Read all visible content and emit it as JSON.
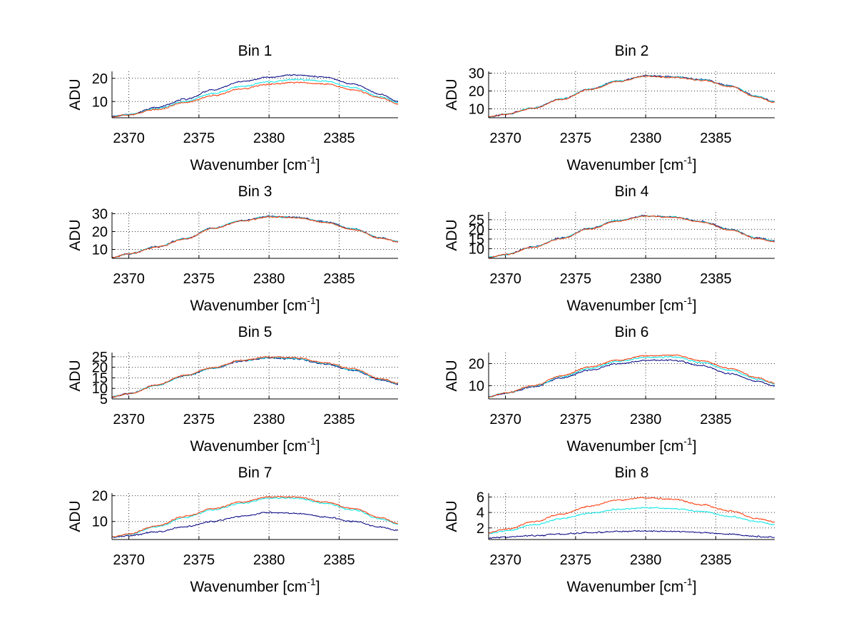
{
  "figure": {
    "background": "#ffffff",
    "series_colors": [
      "#000080",
      "#00e5e5",
      "#ff3300"
    ]
  },
  "chart_data": [
    {
      "type": "line",
      "title": "Bin 1",
      "xlabel": "Wavenumber [cm",
      "xlabel_sup": "-1",
      "xlabel_end": "]",
      "ylabel": "ADU",
      "xlim": [
        2368.8,
        2389.2
      ],
      "ylim": [
        3,
        23
      ],
      "xticks": [
        2370,
        2375,
        2380,
        2385
      ],
      "yticks": [
        10,
        20
      ],
      "grid": true,
      "x": [
        2368.8,
        2370,
        2372,
        2374,
        2376,
        2378,
        2380,
        2382,
        2384,
        2386,
        2388,
        2389.2
      ],
      "series": [
        {
          "values": [
            3.5,
            4.5,
            7.5,
            11,
            15,
            18.5,
            20.5,
            21.5,
            20.5,
            17.5,
            13,
            10
          ]
        },
        {
          "values": [
            3.5,
            4.4,
            7,
            10,
            13.5,
            16.5,
            18.5,
            19.5,
            18.8,
            16,
            12,
            9.5
          ]
        },
        {
          "values": [
            3.5,
            4.3,
            6.5,
            9.5,
            12.5,
            15.5,
            17.5,
            18.2,
            17.5,
            15,
            11.5,
            9
          ]
        }
      ]
    },
    {
      "type": "line",
      "title": "Bin 2",
      "xlabel": "Wavenumber [cm",
      "xlabel_sup": "-1",
      "xlabel_end": "]",
      "ylabel": "ADU",
      "xlim": [
        2368.8,
        2389.2
      ],
      "ylim": [
        5,
        31
      ],
      "xticks": [
        2370,
        2375,
        2380,
        2385
      ],
      "yticks": [
        10,
        20,
        30
      ],
      "grid": true,
      "x": [
        2368.8,
        2370,
        2372,
        2374,
        2376,
        2378,
        2380,
        2382,
        2384,
        2386,
        2388,
        2389.2
      ],
      "series": [
        {
          "values": [
            5.5,
            7,
            10.5,
            15.5,
            21,
            25.5,
            28.5,
            28,
            26.5,
            23,
            17,
            14
          ]
        },
        {
          "values": [
            5.5,
            7,
            10.5,
            15.5,
            21,
            25.5,
            28.3,
            27.8,
            26.3,
            22.8,
            16.8,
            13.8
          ]
        },
        {
          "values": [
            5.5,
            7,
            10.3,
            15.3,
            20.8,
            25.3,
            28.2,
            27.6,
            26,
            22.5,
            16.5,
            13.5
          ]
        }
      ]
    },
    {
      "type": "line",
      "title": "Bin 3",
      "xlabel": "Wavenumber [cm",
      "xlabel_sup": "-1",
      "xlabel_end": "]",
      "ylabel": "ADU",
      "xlim": [
        2368.8,
        2389.2
      ],
      "ylim": [
        5,
        31
      ],
      "xticks": [
        2370,
        2375,
        2380,
        2385
      ],
      "yticks": [
        10,
        20,
        30
      ],
      "grid": true,
      "x": [
        2368.8,
        2370,
        2372,
        2374,
        2376,
        2378,
        2380,
        2382,
        2384,
        2386,
        2388,
        2389.2
      ],
      "series": [
        {
          "values": [
            5.5,
            7.5,
            11.5,
            16,
            22,
            26,
            28.5,
            28,
            25.5,
            21.5,
            16.5,
            14.5
          ]
        },
        {
          "values": [
            5.5,
            7.5,
            11.5,
            16,
            22,
            26,
            28.4,
            27.9,
            25.4,
            21.4,
            16.4,
            14.4
          ]
        },
        {
          "values": [
            5.5,
            7.5,
            11.3,
            15.8,
            21.8,
            25.8,
            28.2,
            27.7,
            25.2,
            21.2,
            16.2,
            14.2
          ]
        }
      ]
    },
    {
      "type": "line",
      "title": "Bin 4",
      "xlabel": "Wavenumber [cm",
      "xlabel_sup": "-1",
      "xlabel_end": "]",
      "ylabel": "ADU",
      "xlim": [
        2368.8,
        2389.2
      ],
      "ylim": [
        5,
        29
      ],
      "xticks": [
        2370,
        2375,
        2380,
        2385
      ],
      "yticks": [
        10,
        15,
        20,
        25
      ],
      "grid": true,
      "x": [
        2368.8,
        2370,
        2372,
        2374,
        2376,
        2378,
        2380,
        2382,
        2384,
        2386,
        2388,
        2389.2
      ],
      "series": [
        {
          "values": [
            5.5,
            7,
            11,
            15.5,
            20.5,
            24.5,
            27,
            26.5,
            24,
            20,
            15.5,
            14
          ]
        },
        {
          "values": [
            5.5,
            7,
            11,
            15.5,
            20.5,
            24.5,
            26.9,
            26.4,
            23.9,
            19.9,
            15.4,
            13.9
          ]
        },
        {
          "values": [
            5.5,
            7,
            10.8,
            15.3,
            20.3,
            24.3,
            26.8,
            26.2,
            23.7,
            19.7,
            15.2,
            13.7
          ]
        }
      ]
    },
    {
      "type": "line",
      "title": "Bin 5",
      "xlabel": "Wavenumber [cm",
      "xlabel_sup": "-1",
      "xlabel_end": "]",
      "ylabel": "ADU",
      "xlim": [
        2368.8,
        2389.2
      ],
      "ylim": [
        5,
        27
      ],
      "xticks": [
        2370,
        2375,
        2380,
        2385
      ],
      "yticks": [
        5,
        10,
        15,
        20,
        25
      ],
      "grid": true,
      "x": [
        2368.8,
        2370,
        2372,
        2374,
        2376,
        2378,
        2380,
        2382,
        2384,
        2386,
        2388,
        2389.2
      ],
      "series": [
        {
          "values": [
            6,
            7.5,
            11.5,
            16,
            19.5,
            23,
            24.5,
            24,
            21.5,
            18.5,
            14,
            12
          ]
        },
        {
          "values": [
            6,
            7.5,
            11.5,
            16,
            19.6,
            23.1,
            24.6,
            24.2,
            21.8,
            18.8,
            14.3,
            12.3
          ]
        },
        {
          "values": [
            6,
            7.5,
            11.6,
            16.2,
            19.8,
            23.3,
            24.9,
            24.5,
            22.1,
            19.2,
            14.6,
            12.6
          ]
        }
      ]
    },
    {
      "type": "line",
      "title": "Bin 6",
      "xlabel": "Wavenumber [cm",
      "xlabel_sup": "-1",
      "xlabel_end": "]",
      "ylabel": "ADU",
      "xlim": [
        2368.8,
        2389.2
      ],
      "ylim": [
        4,
        25
      ],
      "xticks": [
        2370,
        2375,
        2380,
        2385
      ],
      "yticks": [
        10,
        20
      ],
      "grid": true,
      "x": [
        2368.8,
        2370,
        2372,
        2374,
        2376,
        2378,
        2380,
        2382,
        2384,
        2386,
        2388,
        2389.2
      ],
      "series": [
        {
          "values": [
            5,
            6.5,
            9.5,
            13.5,
            17,
            20,
            21.5,
            21.5,
            19,
            15.5,
            12,
            10
          ]
        },
        {
          "values": [
            5,
            6.6,
            9.8,
            14,
            17.8,
            21,
            22.8,
            23,
            20.5,
            17,
            13,
            10.8
          ]
        },
        {
          "values": [
            5,
            6.7,
            10,
            14.5,
            18.5,
            21.5,
            23.5,
            23.8,
            21.2,
            17.8,
            13.6,
            11.2
          ]
        }
      ]
    },
    {
      "type": "line",
      "title": "Bin 7",
      "xlabel": "Wavenumber [cm",
      "xlabel_sup": "-1",
      "xlabel_end": "]",
      "ylabel": "ADU",
      "xlim": [
        2368.8,
        2389.2
      ],
      "ylim": [
        3,
        21
      ],
      "xticks": [
        2370,
        2375,
        2380,
        2385
      ],
      "yticks": [
        10,
        20
      ],
      "grid": true,
      "x": [
        2368.8,
        2370,
        2372,
        2374,
        2376,
        2378,
        2380,
        2382,
        2384,
        2386,
        2388,
        2389.2
      ],
      "series": [
        {
          "values": [
            3.8,
            4.5,
            6,
            8,
            10,
            12,
            13.5,
            13.2,
            11.8,
            10,
            7.8,
            6.5
          ]
        },
        {
          "values": [
            4,
            5,
            8,
            11.5,
            14.5,
            17,
            19,
            19,
            17,
            14.5,
            11,
            9
          ]
        },
        {
          "values": [
            4,
            5.2,
            8.3,
            12,
            15,
            17.5,
            19.5,
            19.5,
            17.5,
            15,
            11.5,
            9.3
          ]
        }
      ]
    },
    {
      "type": "line",
      "title": "Bin 8",
      "xlabel": "Wavenumber [cm",
      "xlabel_sup": "-1",
      "xlabel_end": "]",
      "ylabel": "ADU",
      "xlim": [
        2368.8,
        2389.2
      ],
      "ylim": [
        0.5,
        6.5
      ],
      "xticks": [
        2370,
        2375,
        2380,
        2385
      ],
      "yticks": [
        2,
        4,
        6
      ],
      "grid": true,
      "x": [
        2368.8,
        2370,
        2372,
        2374,
        2376,
        2378,
        2380,
        2382,
        2384,
        2386,
        2388,
        2389.2
      ],
      "series": [
        {
          "values": [
            0.7,
            0.8,
            1,
            1.2,
            1.4,
            1.55,
            1.6,
            1.55,
            1.4,
            1.2,
            0.9,
            0.8
          ]
        },
        {
          "values": [
            1.3,
            1.6,
            2.4,
            3.2,
            3.9,
            4.4,
            4.6,
            4.5,
            4.1,
            3.5,
            2.8,
            2.4
          ]
        },
        {
          "values": [
            1.4,
            1.8,
            2.8,
            3.8,
            4.8,
            5.6,
            5.9,
            5.7,
            5,
            4.2,
            3.2,
            2.8
          ]
        }
      ]
    }
  ]
}
